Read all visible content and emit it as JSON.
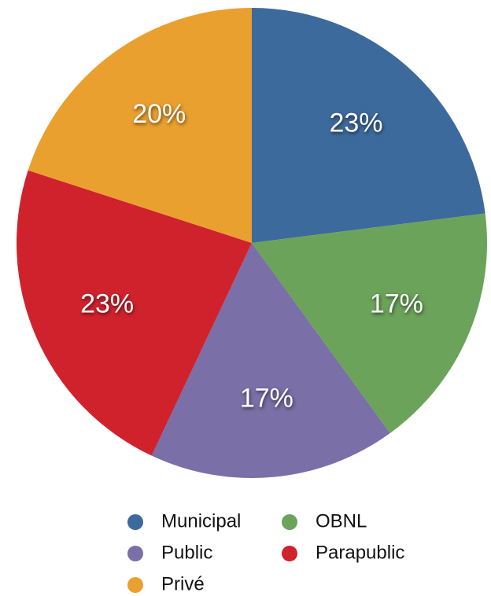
{
  "chart_data": {
    "type": "pie",
    "categories": [
      "Municipal",
      "OBNL",
      "Public",
      "Parapublic",
      "Privé"
    ],
    "values": [
      23,
      17,
      17,
      23,
      20
    ],
    "value_labels": [
      "23%",
      "17%",
      "17%",
      "23%",
      "20%"
    ],
    "colors": [
      "#3d6a9c",
      "#6ba35a",
      "#7a6fa6",
      "#d0222d",
      "#eaa02f"
    ],
    "legend": "bottom"
  }
}
